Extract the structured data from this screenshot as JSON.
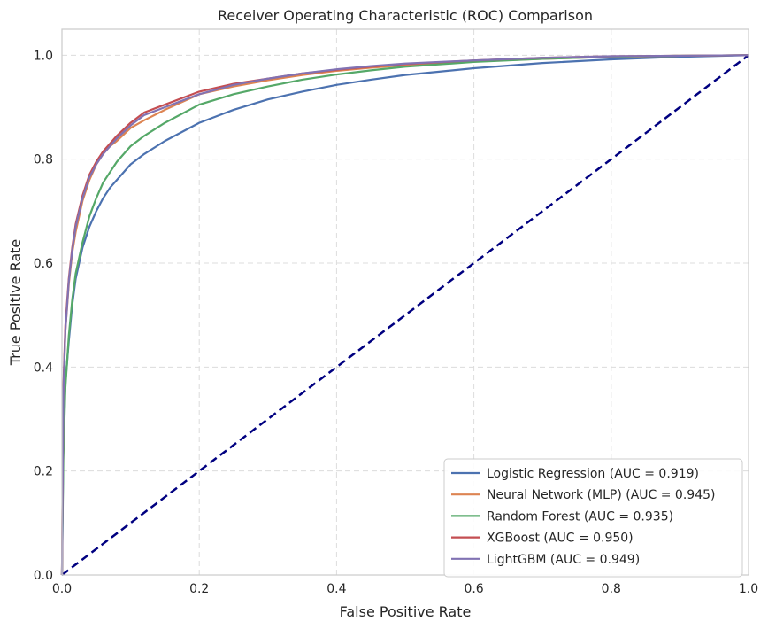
{
  "chart_data": {
    "type": "line",
    "title": "Receiver Operating Characteristic (ROC) Comparison",
    "xlabel": "False Positive Rate",
    "ylabel": "True Positive Rate",
    "xlim": [
      0.0,
      1.0
    ],
    "ylim": [
      0.0,
      1.05
    ],
    "xticks": [
      "0.0",
      "0.2",
      "0.4",
      "0.6",
      "0.8",
      "1.0"
    ],
    "yticks": [
      "0.0",
      "0.2",
      "0.4",
      "0.6",
      "0.8",
      "1.0"
    ],
    "grid": true,
    "legend_position": "lower-right",
    "series": [
      {
        "name": "Logistic Regression (AUC = 0.919)",
        "color": "#4c72b0",
        "x": [
          0,
          0.002,
          0.005,
          0.01,
          0.015,
          0.02,
          0.03,
          0.04,
          0.05,
          0.06,
          0.07,
          0.08,
          0.1,
          0.12,
          0.15,
          0.2,
          0.25,
          0.3,
          0.35,
          0.4,
          0.45,
          0.5,
          0.6,
          0.7,
          0.8,
          0.9,
          1.0
        ],
        "y": [
          0,
          0.25,
          0.37,
          0.45,
          0.52,
          0.57,
          0.63,
          0.67,
          0.7,
          0.725,
          0.745,
          0.76,
          0.79,
          0.81,
          0.835,
          0.87,
          0.895,
          0.915,
          0.93,
          0.943,
          0.953,
          0.962,
          0.975,
          0.985,
          0.992,
          0.997,
          1.0
        ]
      },
      {
        "name": "Neural Network (MLP) (AUC = 0.945)",
        "color": "#dd8452",
        "x": [
          0,
          0.002,
          0.005,
          0.01,
          0.015,
          0.02,
          0.03,
          0.04,
          0.05,
          0.06,
          0.07,
          0.08,
          0.1,
          0.12,
          0.15,
          0.2,
          0.25,
          0.3,
          0.35,
          0.4,
          0.45,
          0.5,
          0.6,
          0.7,
          0.8,
          0.9,
          1.0
        ],
        "y": [
          0,
          0.35,
          0.47,
          0.56,
          0.62,
          0.66,
          0.72,
          0.76,
          0.79,
          0.81,
          0.825,
          0.835,
          0.86,
          0.875,
          0.895,
          0.925,
          0.94,
          0.952,
          0.962,
          0.97,
          0.976,
          0.981,
          0.988,
          0.993,
          0.997,
          0.999,
          1.0
        ]
      },
      {
        "name": "Random Forest (AUC = 0.935)",
        "color": "#55a868",
        "x": [
          0,
          0.002,
          0.005,
          0.01,
          0.015,
          0.02,
          0.03,
          0.04,
          0.05,
          0.06,
          0.07,
          0.08,
          0.1,
          0.12,
          0.15,
          0.2,
          0.25,
          0.3,
          0.35,
          0.4,
          0.45,
          0.5,
          0.6,
          0.7,
          0.8,
          0.9,
          1.0
        ],
        "y": [
          0,
          0.22,
          0.36,
          0.46,
          0.53,
          0.58,
          0.64,
          0.69,
          0.725,
          0.755,
          0.775,
          0.795,
          0.825,
          0.845,
          0.87,
          0.905,
          0.925,
          0.94,
          0.953,
          0.963,
          0.971,
          0.978,
          0.987,
          0.993,
          0.997,
          0.999,
          1.0
        ]
      },
      {
        "name": "XGBoost (AUC = 0.950)",
        "color": "#c44e52",
        "x": [
          0,
          0.002,
          0.005,
          0.01,
          0.015,
          0.02,
          0.03,
          0.04,
          0.05,
          0.06,
          0.07,
          0.08,
          0.1,
          0.12,
          0.15,
          0.2,
          0.25,
          0.3,
          0.35,
          0.4,
          0.45,
          0.5,
          0.6,
          0.7,
          0.8,
          0.9,
          1.0
        ],
        "y": [
          0,
          0.36,
          0.48,
          0.57,
          0.63,
          0.675,
          0.73,
          0.77,
          0.795,
          0.815,
          0.83,
          0.845,
          0.87,
          0.89,
          0.905,
          0.93,
          0.945,
          0.955,
          0.965,
          0.972,
          0.978,
          0.983,
          0.99,
          0.995,
          0.998,
          0.999,
          1.0
        ]
      },
      {
        "name": "LightGBM (AUC = 0.949)",
        "color": "#8172b3",
        "x": [
          0,
          0.002,
          0.005,
          0.01,
          0.015,
          0.02,
          0.03,
          0.04,
          0.05,
          0.06,
          0.07,
          0.08,
          0.1,
          0.12,
          0.15,
          0.2,
          0.25,
          0.3,
          0.35,
          0.4,
          0.45,
          0.5,
          0.6,
          0.7,
          0.8,
          0.9,
          1.0
        ],
        "y": [
          0,
          0.35,
          0.47,
          0.565,
          0.625,
          0.67,
          0.725,
          0.765,
          0.79,
          0.81,
          0.825,
          0.84,
          0.865,
          0.885,
          0.9,
          0.925,
          0.943,
          0.955,
          0.965,
          0.973,
          0.979,
          0.984,
          0.99,
          0.995,
          0.998,
          0.999,
          1.0
        ]
      }
    ],
    "reference_line": {
      "color": "#000080",
      "x": [
        0,
        1
      ],
      "y": [
        0,
        1
      ],
      "style": "dashed"
    }
  }
}
